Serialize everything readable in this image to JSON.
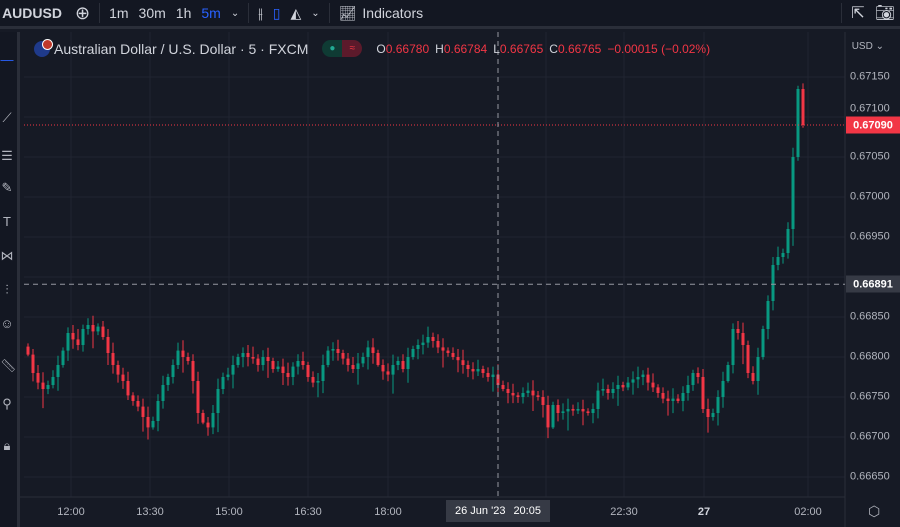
{
  "toolbar": {
    "symbol": "AUDUSD",
    "intervals": [
      "1m",
      "30m",
      "1h",
      "5m"
    ],
    "active_interval": "5m",
    "indicators_label": "Indicators"
  },
  "legend": {
    "title": "Australian Dollar / U.S. Dollar · 5 · FXCM",
    "o_label": "O",
    "o": "0.66780",
    "h_label": "H",
    "h": "0.66784",
    "l_label": "L",
    "l": "0.66765",
    "c_label": "C",
    "c": "0.66765",
    "change": "−0.00015 (−0.02%)"
  },
  "currency": "USD",
  "colors": {
    "background": "#161a25",
    "up": "#089981",
    "down": "#f23645",
    "crosshair_label": "#363a45"
  },
  "chart_data": {
    "type": "candlestick",
    "symbol": "AUDUSD",
    "interval": "5m",
    "ylim": [
      0.6664,
      0.6717
    ],
    "y_ticks": [
      "0.67150",
      "0.67100",
      "0.67050",
      "0.67000",
      "0.66950",
      "0.66850",
      "0.66800",
      "0.66750",
      "0.66700",
      "0.66650"
    ],
    "x_ticks": [
      "12:00",
      "13:30",
      "15:00",
      "16:30",
      "18:00",
      "22:30",
      "27",
      "02:00"
    ],
    "last_price": "0.67090",
    "crosshair": {
      "price": "0.66891",
      "date": "26 Jun '23",
      "time": "20:05"
    },
    "closes": [
      0.66803,
      0.6678,
      0.66768,
      0.6676,
      0.66765,
      0.66775,
      0.6679,
      0.66808,
      0.6683,
      0.66822,
      0.66815,
      0.66835,
      0.6684,
      0.66832,
      0.66838,
      0.66825,
      0.66805,
      0.6679,
      0.66778,
      0.6677,
      0.66752,
      0.66745,
      0.66738,
      0.66725,
      0.66712,
      0.6672,
      0.66745,
      0.66765,
      0.66775,
      0.6679,
      0.66808,
      0.668,
      0.66795,
      0.6677,
      0.6673,
      0.66718,
      0.66712,
      0.6673,
      0.6676,
      0.66775,
      0.66778,
      0.6679,
      0.668,
      0.66805,
      0.668,
      0.66798,
      0.6679,
      0.668,
      0.66795,
      0.66785,
      0.66788,
      0.6678,
      0.66775,
      0.66788,
      0.66795,
      0.6679,
      0.66775,
      0.66768,
      0.6677,
      0.6679,
      0.66808,
      0.6681,
      0.66805,
      0.66798,
      0.6679,
      0.66785,
      0.66792,
      0.668,
      0.66812,
      0.66805,
      0.6679,
      0.66782,
      0.66778,
      0.6679,
      0.66795,
      0.66785,
      0.668,
      0.6681,
      0.66815,
      0.66818,
      0.66825,
      0.6682,
      0.66812,
      0.66808,
      0.66805,
      0.668,
      0.66796,
      0.6679,
      0.66785,
      0.66782,
      0.66785,
      0.6678,
      0.66775,
      0.66778,
      0.66765,
      0.6676,
      0.66755,
      0.66752,
      0.6675,
      0.66755,
      0.66758,
      0.66752,
      0.6675,
      0.6674,
      0.66712,
      0.6674,
      0.6673,
      0.66732,
      0.66735,
      0.66733,
      0.66735,
      0.66732,
      0.6673,
      0.66735,
      0.66758,
      0.6676,
      0.66755,
      0.6676,
      0.66765,
      0.66762,
      0.66768,
      0.66772,
      0.66775,
      0.66778,
      0.66768,
      0.66762,
      0.66755,
      0.66748,
      0.66745,
      0.66748,
      0.66745,
      0.66755,
      0.66765,
      0.6678,
      0.66775,
      0.66735,
      0.66725,
      0.6673,
      0.6675,
      0.6677,
      0.6679,
      0.66835,
      0.6683,
      0.66815,
      0.6678,
      0.6677,
      0.668,
      0.66835,
      0.6687,
      0.66915,
      0.66925,
      0.6693,
      0.6696,
      0.6705,
      0.67135,
      0.6709
    ]
  }
}
